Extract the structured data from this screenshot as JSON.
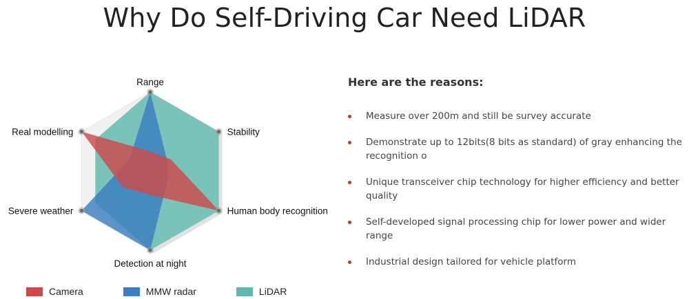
{
  "page": {
    "title": "Why Do Self-Driving Car Need LiDAR"
  },
  "reasons": {
    "heading": "Here are the reasons:",
    "bullet_color": "#c0392b",
    "items": [
      "Measure over 200m and still be survey accurate",
      "Demonstrate up to 12bits(8 bits as standard) of gray enhancing the recognition o",
      "Unique transceiver chip technology for higher efficiency and better quality",
      "Self-developed signal processing chip for lower power and wider range",
      "Industrial design tailored for vehicle platform"
    ]
  },
  "chart_data": {
    "type": "radar",
    "axes": [
      "Range",
      "Stability",
      "Human body recognition",
      "Detection at night",
      "Severe weather",
      "Real modelling"
    ],
    "rmax": 1,
    "series": [
      {
        "name": "LiDAR",
        "color": "#5fb8ad",
        "values": [
          1.0,
          1.0,
          1.0,
          1.0,
          0.8,
          0.8
        ]
      },
      {
        "name": "MMW radar",
        "color": "#3a7fc1",
        "values": [
          1.0,
          0.25,
          0.25,
          1.0,
          1.0,
          0.3
        ]
      },
      {
        "name": "Camera",
        "color": "#cc4a4a",
        "values": [
          0.25,
          0.3,
          1.0,
          0.3,
          0.4,
          1.0
        ]
      }
    ],
    "legend": [
      {
        "name": "Camera",
        "color": "#cc4a4a"
      },
      {
        "name": "MMW radar",
        "color": "#3a7fc1"
      },
      {
        "name": "LiDAR",
        "color": "#5fb8ad"
      }
    ],
    "legend_position": "bottom"
  }
}
